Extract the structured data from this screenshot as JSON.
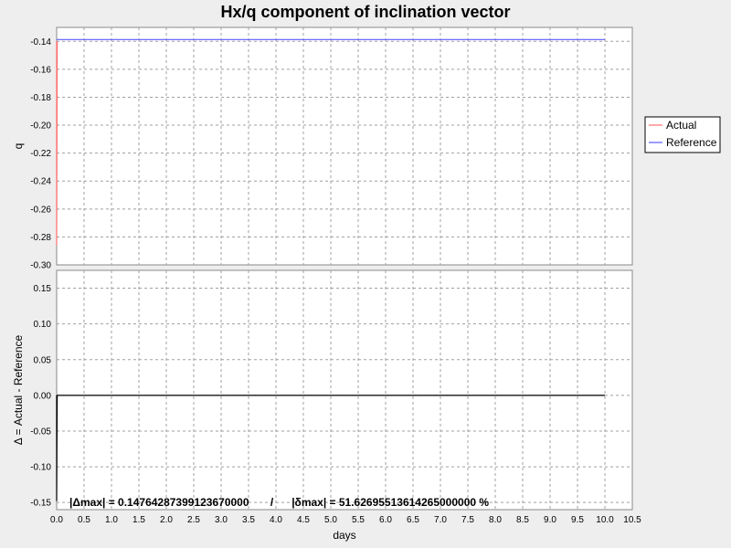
{
  "chart_data": {
    "type": "line",
    "title": "Hx/q component of inclination vector",
    "xlabel": "days",
    "x_ticks": [
      "0.0",
      "0.5",
      "1.0",
      "1.5",
      "2.0",
      "2.5",
      "3.0",
      "3.5",
      "4.0",
      "4.5",
      "5.0",
      "5.5",
      "6.0",
      "6.5",
      "7.0",
      "7.5",
      "8.0",
      "8.5",
      "9.0",
      "9.5",
      "10.0",
      "10.5"
    ],
    "xlim": [
      0,
      10.5
    ],
    "grid": true,
    "legend_position": "right",
    "legend": [
      {
        "name": "Actual",
        "color": "#ff6f6f"
      },
      {
        "name": "Reference",
        "color": "#5b5bff"
      }
    ],
    "top_panel": {
      "ylabel": "q",
      "ylim": [
        -0.3,
        -0.13
      ],
      "y_ticks": [
        "-0.14",
        "-0.16",
        "-0.18",
        "-0.20",
        "-0.22",
        "-0.24",
        "-0.26",
        "-0.28",
        "-0.30"
      ],
      "series": [
        {
          "name": "Actual",
          "color": "#ff6f6f",
          "x": [
            0.0,
            0.0,
            0.005,
            0.01
          ],
          "y": [
            -0.14,
            -0.286,
            -0.22,
            -0.14
          ]
        },
        {
          "name": "Reference",
          "color": "#5b5bff",
          "x": [
            0.0,
            10.0
          ],
          "y": [
            -0.1387,
            -0.1387
          ]
        }
      ]
    },
    "bottom_panel": {
      "ylabel": "Δ = Actual - Reference",
      "ylim": [
        -0.16,
        0.175
      ],
      "y_ticks": [
        "0.15",
        "0.10",
        "0.05",
        "0.00",
        "-0.05",
        "-0.10",
        "-0.15"
      ],
      "series": [
        {
          "name": "Δ",
          "color": "#000000",
          "x": [
            0.0,
            0.0,
            0.005,
            0.01,
            10.0
          ],
          "y": [
            0.0,
            -0.148,
            -0.07,
            0.0,
            0.0
          ]
        }
      ],
      "annotation": "|Δmax| = 0.14764287399123670000       /      |δmax| = 51.62695513614265000000 %"
    }
  }
}
